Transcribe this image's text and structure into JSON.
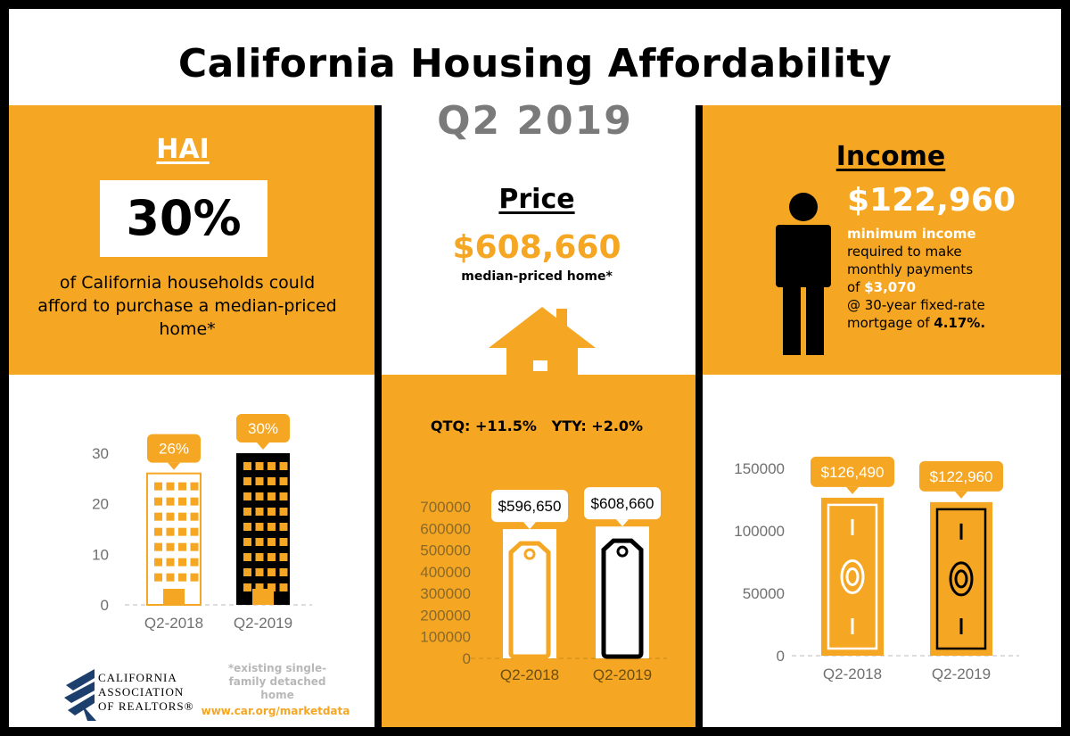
{
  "header": {
    "title": "California Housing Affordability",
    "subtitle": "Q2 2019"
  },
  "hai": {
    "heading": "HAI",
    "value": "30%",
    "description": "of California households could afford to purchase a median-priced home*"
  },
  "price": {
    "heading": "Price",
    "value": "$608,660",
    "caption": "median-priced home*",
    "changes": "QTQ: +11.5%   YTY: +2.0%"
  },
  "income": {
    "heading": "Income",
    "value": "$122,960",
    "line1": "minimum income",
    "line2": "required to make",
    "line3": "monthly payments",
    "line4_prefix": "of ",
    "line4_value": "$3,070",
    "line5": "@ 30-year fixed-rate",
    "line6_prefix": "mortgage of ",
    "line6_value": "4.17%."
  },
  "footer": {
    "logo_line1": "CALIFORNIA",
    "logo_line2": "ASSOCIATION",
    "logo_line3": "OF REALTORS®",
    "footnote": "*existing single-family detached home",
    "website": "www.car.org/marketdata"
  },
  "colors": {
    "accent": "#f5a623",
    "dark": "#000000",
    "axis_text": "#707070"
  },
  "chart_data": [
    {
      "type": "bar",
      "categories": [
        "Q2-2018",
        "Q2-2019"
      ],
      "values": [
        26,
        30
      ],
      "data_labels": [
        "26%",
        "30%"
      ],
      "yticks": [
        0,
        10,
        20,
        30
      ],
      "ylim": [
        0,
        30
      ]
    },
    {
      "type": "bar",
      "categories": [
        "Q2-2018",
        "Q2-2019"
      ],
      "values": [
        596650,
        608660
      ],
      "data_labels": [
        "$596,650",
        "$608,660"
      ],
      "yticks": [
        0,
        100000,
        200000,
        300000,
        400000,
        500000,
        600000,
        700000
      ],
      "ylim": [
        0,
        700000
      ]
    },
    {
      "type": "bar",
      "categories": [
        "Q2-2018",
        "Q2-2019"
      ],
      "values": [
        126490,
        122960
      ],
      "data_labels": [
        "$126,490",
        "$122,960"
      ],
      "yticks": [
        0,
        50000,
        100000,
        150000
      ],
      "ylim": [
        0,
        150000
      ]
    }
  ]
}
